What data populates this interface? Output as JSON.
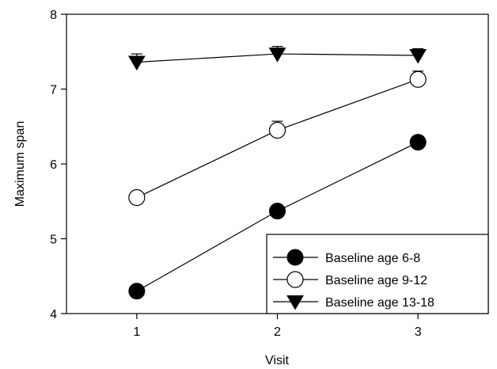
{
  "chart_data": {
    "type": "line",
    "title": "",
    "xlabel": "Visit",
    "ylabel": "Maximum span",
    "x": [
      1,
      2,
      3
    ],
    "x_ticks": [
      "1",
      "2",
      "3"
    ],
    "xlim": [
      0.5,
      3.5
    ],
    "ylim": [
      4,
      8
    ],
    "y_ticks": [
      "4",
      "5",
      "6",
      "7",
      "8"
    ],
    "grid": false,
    "legend_position": "bottom-right",
    "series": [
      {
        "name": "Baseline age 6-8",
        "marker": "filled-circle",
        "values": [
          4.3,
          5.37,
          6.29
        ],
        "error": [
          0.05,
          0.05,
          0.06
        ]
      },
      {
        "name": "Baseline age 9-12",
        "marker": "open-circle",
        "values": [
          5.55,
          6.45,
          7.13
        ],
        "error": [
          0.05,
          0.12,
          0.11
        ]
      },
      {
        "name": "Baseline age 13-18",
        "marker": "filled-down-triangle",
        "values": [
          7.36,
          7.47,
          7.45
        ],
        "error": [
          0.11,
          0.1,
          0.09
        ]
      }
    ]
  }
}
